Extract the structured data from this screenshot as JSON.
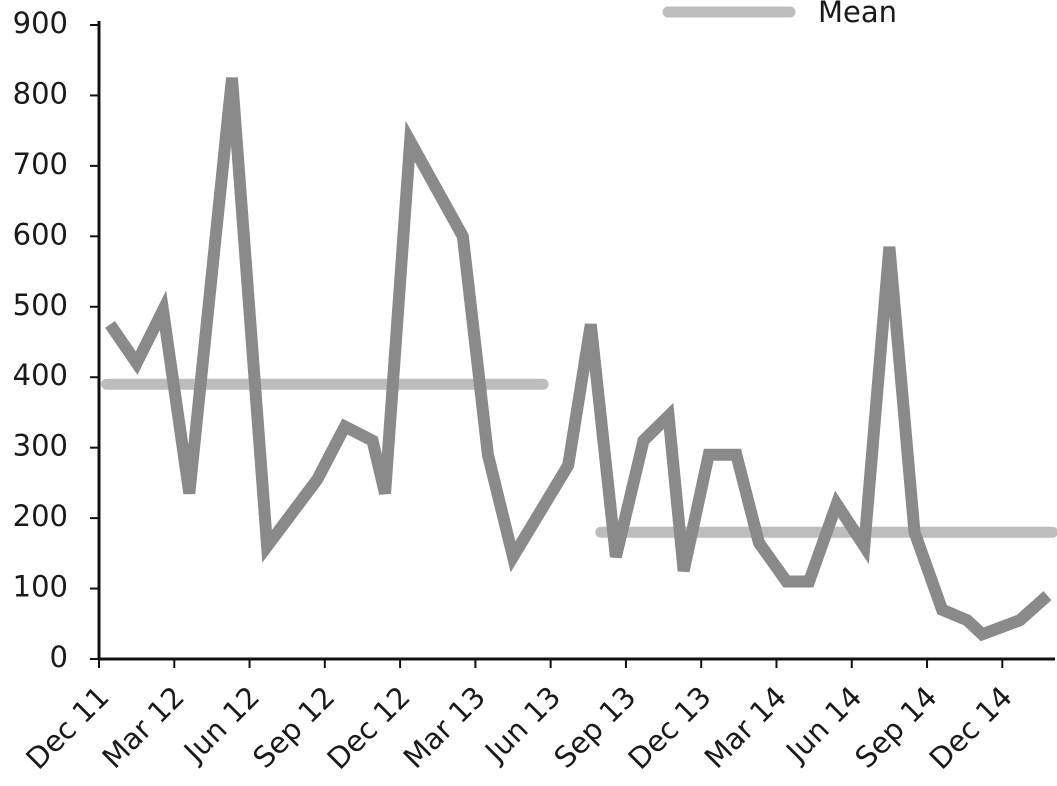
{
  "chart_data": {
    "type": "line",
    "x": [
      0.44,
      1.5,
      2.55,
      3.6,
      5.3,
      6.7,
      8.7,
      9.8,
      10.9,
      11.4,
      12.4,
      14.5,
      15.5,
      16.5,
      18.7,
      19.6,
      20.6,
      21.7,
      22.7,
      23.3,
      24.3,
      25.4,
      26.3,
      27.4,
      28.3,
      29.4,
      30.5,
      31.5,
      32.5,
      33.6,
      34.6,
      35.2,
      36.7,
      37.8
    ],
    "series": [
      {
        "color": "#8a8a8a",
        "values": [
          475,
          420,
          495,
          235,
          825,
          160,
          255,
          330,
          310,
          235,
          735,
          600,
          290,
          145,
          275,
          475,
          145,
          310,
          345,
          125,
          290,
          290,
          165,
          110,
          110,
          220,
          160,
          585,
          180,
          70,
          55,
          35,
          55,
          90
        ]
      },
      {
        "name": "Mean",
        "color": "#bdbdbd",
        "x": [
          0.3,
          17.7,
          18.7,
          20.0,
          38.0
        ],
        "values": [
          390,
          390,
          null,
          180,
          180
        ]
      }
    ],
    "xlim": [
      0,
      38.1
    ],
    "xticks": [
      {
        "value": 0,
        "label": "Dec 11"
      },
      {
        "value": 3,
        "label": "Mar 12"
      },
      {
        "value": 6,
        "label": "Jun 12"
      },
      {
        "value": 9,
        "label": "Sep 12"
      },
      {
        "value": 12,
        "label": "Dec 12"
      },
      {
        "value": 15,
        "label": "Mar 13"
      },
      {
        "value": 18,
        "label": "Jun 13"
      },
      {
        "value": 21,
        "label": "Sep 13"
      },
      {
        "value": 24,
        "label": "Dec 13"
      },
      {
        "value": 27,
        "label": "Mar 14"
      },
      {
        "value": 30,
        "label": "Jun 14"
      },
      {
        "value": 33,
        "label": "Sep 14"
      },
      {
        "value": 36,
        "label": "Dec 14"
      }
    ],
    "ylim": [
      0,
      900
    ],
    "yticks": [
      0,
      100,
      200,
      300,
      400,
      500,
      600,
      700,
      800,
      900
    ],
    "grid": false,
    "legend": "top"
  }
}
